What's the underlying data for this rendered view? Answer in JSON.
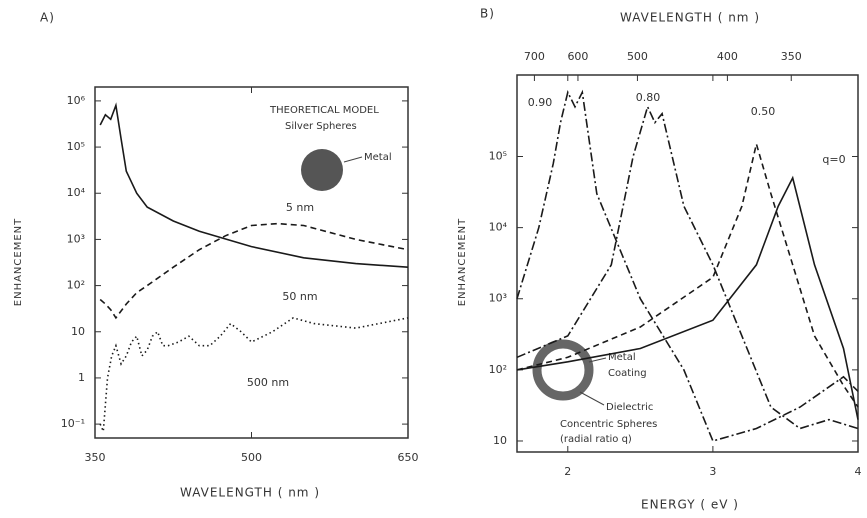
{
  "chart_data": [
    {
      "type": "line",
      "panel": "A)",
      "xlabel": "WAVELENGTH ( nm )",
      "ylabel": "ENHANCEMENT",
      "xlim": [
        350,
        650
      ],
      "xticks": [
        350,
        500,
        650
      ],
      "ylim": [
        0.05,
        2000000
      ],
      "log_y": true,
      "yticks": [
        {
          "value": 1000000,
          "label": "10⁶"
        },
        {
          "value": 100000,
          "label": "10⁵"
        },
        {
          "value": 10000,
          "label": "10⁴"
        },
        {
          "value": 1000,
          "label": "10³"
        },
        {
          "value": 100,
          "label": "10²"
        },
        10,
        1,
        {
          "value": 0.1,
          "label": "10⁻¹"
        }
      ],
      "annotations": [
        "THEORETICAL MODEL",
        "Silver Spheres",
        "Metal"
      ],
      "series": [
        {
          "name": "5 nm",
          "color": "#1a1a1a",
          "dash": "solid",
          "x": [
            355,
            360,
            365,
            370,
            375,
            380,
            390,
            400,
            425,
            450,
            500,
            550,
            600,
            650
          ],
          "values": [
            300000,
            500000,
            400000,
            800000,
            150000,
            30000,
            10000,
            5000,
            2500,
            1500,
            700,
            400,
            300,
            250
          ]
        },
        {
          "name": "50 nm",
          "color": "#1a1a1a",
          "dash": "dashed",
          "x": [
            355,
            360,
            365,
            370,
            380,
            390,
            400,
            425,
            450,
            475,
            500,
            525,
            550,
            600,
            650
          ],
          "values": [
            50,
            40,
            30,
            20,
            40,
            70,
            100,
            250,
            600,
            1200,
            2000,
            2200,
            2000,
            1000,
            600
          ]
        },
        {
          "name": "500 nm",
          "color": "#1a1a1a",
          "dash": "dotted",
          "x": [
            355,
            358,
            362,
            366,
            370,
            375,
            380,
            385,
            390,
            395,
            400,
            405,
            410,
            415,
            420,
            430,
            440,
            450,
            460,
            470,
            480,
            490,
            500,
            520,
            540,
            560,
            600,
            650
          ],
          "values": [
            0.1,
            0.07,
            1,
            3,
            5,
            2,
            3,
            6,
            8,
            3,
            4,
            8,
            10,
            5,
            5,
            6,
            8,
            5,
            5,
            8,
            15,
            10,
            6,
            10,
            20,
            15,
            12,
            20
          ]
        }
      ]
    },
    {
      "type": "line",
      "panel": "B)",
      "xlabel": "ENERGY ( eV )",
      "x2label": "WAVELENGTH ( nm )",
      "ylabel": "ENHANCEMENT",
      "xlim": [
        1.65,
        4.0
      ],
      "xticks": [
        2,
        3,
        4
      ],
      "x2ticks": [
        {
          "value": 1.77,
          "label": "700"
        },
        {
          "value": 2.07,
          "label": "600"
        },
        {
          "value": 2.48,
          "label": "500"
        },
        {
          "value": 3.1,
          "label": "400"
        },
        {
          "value": 3.54,
          "label": "350"
        }
      ],
      "ylim": [
        7,
        1400000
      ],
      "log_y": true,
      "yticks": [
        {
          "value": 100000,
          "label": "10⁵"
        },
        {
          "value": 10000,
          "label": "10⁴"
        },
        {
          "value": 1000,
          "label": "10³"
        },
        {
          "value": 100,
          "label": "10²"
        },
        10
      ],
      "annotations": [
        "Metal",
        "Coating",
        "Dielectric",
        "Concentric Spheres",
        "(radial ratio q)"
      ],
      "series": [
        {
          "name": "0.90",
          "color": "#1a1a1a",
          "dash": "dashdot",
          "x": [
            1.65,
            1.8,
            1.9,
            1.95,
            2.0,
            2.05,
            2.1,
            2.2,
            2.5,
            2.8,
            3.0,
            3.3,
            3.6,
            3.9,
            4.0
          ],
          "values": [
            1000,
            10000,
            80000,
            300000,
            800000,
            500000,
            800000,
            30000,
            1000,
            100,
            10,
            15,
            30,
            80,
            50
          ]
        },
        {
          "name": "0.80",
          "color": "#1a1a1a",
          "dash": "dashdot",
          "x": [
            1.65,
            2.0,
            2.3,
            2.45,
            2.55,
            2.6,
            2.65,
            2.8,
            3.0,
            3.2,
            3.4,
            3.6,
            3.8,
            4.0
          ],
          "values": [
            150,
            300,
            3000,
            100000,
            500000,
            300000,
            400000,
            20000,
            3000,
            300,
            30,
            15,
            20,
            15
          ]
        },
        {
          "name": "0.50",
          "color": "#1a1a1a",
          "dash": "dashed",
          "x": [
            1.65,
            2.0,
            2.5,
            3.0,
            3.2,
            3.3,
            3.4,
            3.55,
            3.7,
            3.9,
            4.0
          ],
          "values": [
            100,
            150,
            400,
            2000,
            20000,
            150000,
            30000,
            3000,
            300,
            60,
            30
          ]
        },
        {
          "name": "q=0",
          "color": "#1a1a1a",
          "dash": "solid",
          "x": [
            1.65,
            2.0,
            2.5,
            3.0,
            3.3,
            3.45,
            3.55,
            3.7,
            3.9,
            4.0
          ],
          "values": [
            100,
            130,
            200,
            500,
            3000,
            20000,
            50000,
            3000,
            200,
            20
          ]
        }
      ]
    }
  ]
}
